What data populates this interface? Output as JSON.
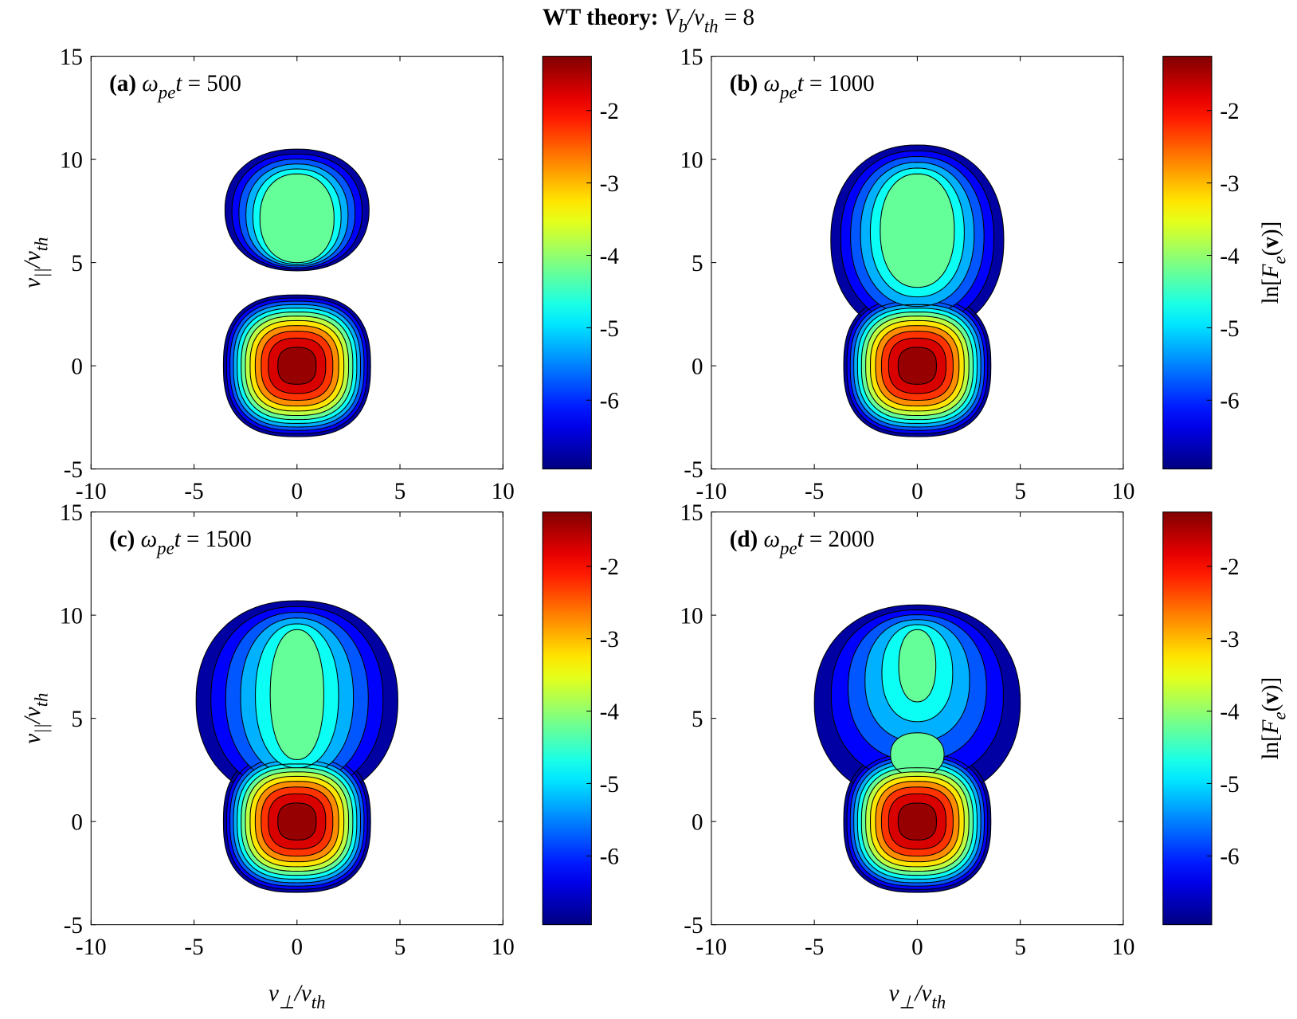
{
  "title": [
    {
      "text": "WT theory:",
      "style": "bold"
    },
    {
      "text": " V",
      "style": "italic"
    },
    {
      "text": "b",
      "style": "sub"
    },
    {
      "text": "/v",
      "style": "italic"
    },
    {
      "text": "th",
      "style": "sub"
    },
    {
      "text": " = 8",
      "style": "normal"
    }
  ],
  "chart_data": [
    {
      "type": "contour",
      "label": [
        {
          "text": "(a)",
          "style": "bold"
        },
        {
          "text": " ω",
          "style": "italic"
        },
        {
          "text": "pe",
          "style": "sub"
        },
        {
          "text": "t",
          "style": "italic"
        },
        {
          "text": " = 500",
          "style": "normal"
        }
      ],
      "y_label": [
        {
          "text": "v",
          "style": "italic"
        },
        {
          "text": "||",
          "style": "sub"
        },
        {
          "text": "/v",
          "style": "italic"
        },
        {
          "text": "th",
          "style": "sub"
        }
      ],
      "xlim": [
        -10,
        10
      ],
      "xticks": [
        -10,
        -5,
        0,
        5,
        10
      ],
      "ylim": [
        -5,
        15
      ],
      "yticks": [
        -5,
        0,
        5,
        10,
        15
      ],
      "clim": [
        -6.95,
        -1.25
      ],
      "cticks": [
        -6,
        -5,
        -4,
        -3,
        -2
      ],
      "levels": [
        -7,
        -6.5,
        -6,
        -5.5,
        -5,
        -4.5,
        -4,
        -3.5,
        -3,
        -2.5,
        -2,
        -1.5
      ],
      "colormap": "jet"
    },
    {
      "type": "contour",
      "label": [
        {
          "text": "(b)",
          "style": "bold"
        },
        {
          "text": " ω",
          "style": "italic"
        },
        {
          "text": "pe",
          "style": "sub"
        },
        {
          "text": "t",
          "style": "italic"
        },
        {
          "text": " = 1000",
          "style": "normal"
        }
      ],
      "colorbar_label": [
        {
          "text": "ln[",
          "style": "normal"
        },
        {
          "text": "F",
          "style": "italic"
        },
        {
          "text": "e",
          "style": "sub"
        },
        {
          "text": "(",
          "style": "normal"
        },
        {
          "text": "v",
          "style": "bold"
        },
        {
          "text": ")]",
          "style": "normal"
        }
      ],
      "xlim": [
        -10,
        10
      ],
      "xticks": [
        -10,
        -5,
        0,
        5,
        10
      ],
      "ylim": [
        -5,
        15
      ],
      "yticks": [
        -5,
        0,
        5,
        10,
        15
      ],
      "clim": [
        -6.95,
        -1.25
      ],
      "cticks": [
        -6,
        -5,
        -4,
        -3,
        -2
      ],
      "levels": [
        -7,
        -6.5,
        -6,
        -5.5,
        -5,
        -4.5,
        -4,
        -3.5,
        -3,
        -2.5,
        -2,
        -1.5
      ],
      "colormap": "jet"
    },
    {
      "type": "contour",
      "label": [
        {
          "text": "(c)",
          "style": "bold"
        },
        {
          "text": " ω",
          "style": "italic"
        },
        {
          "text": "pe",
          "style": "sub"
        },
        {
          "text": "t",
          "style": "italic"
        },
        {
          "text": " = 1500",
          "style": "normal"
        }
      ],
      "y_label": [
        {
          "text": "v",
          "style": "italic"
        },
        {
          "text": "||",
          "style": "sub"
        },
        {
          "text": "/v",
          "style": "italic"
        },
        {
          "text": "th",
          "style": "sub"
        }
      ],
      "x_label": [
        {
          "text": "v",
          "style": "italic"
        },
        {
          "text": "⊥",
          "style": "sub"
        },
        {
          "text": "/v",
          "style": "italic"
        },
        {
          "text": "th",
          "style": "sub"
        }
      ],
      "xlim": [
        -10,
        10
      ],
      "xticks": [
        -10,
        -5,
        0,
        5,
        10
      ],
      "ylim": [
        -5,
        15
      ],
      "yticks": [
        -5,
        0,
        5,
        10,
        15
      ],
      "clim": [
        -6.95,
        -1.25
      ],
      "cticks": [
        -6,
        -5,
        -4,
        -3,
        -2
      ],
      "levels": [
        -7,
        -6.5,
        -6,
        -5.5,
        -5,
        -4.5,
        -4,
        -3.5,
        -3,
        -2.5,
        -2,
        -1.5
      ],
      "colormap": "jet"
    },
    {
      "type": "contour",
      "label": [
        {
          "text": "(d)",
          "style": "bold"
        },
        {
          "text": " ω",
          "style": "italic"
        },
        {
          "text": "pe",
          "style": "sub"
        },
        {
          "text": "t",
          "style": "italic"
        },
        {
          "text": " = 2000",
          "style": "normal"
        }
      ],
      "x_label": [
        {
          "text": "v",
          "style": "italic"
        },
        {
          "text": "⊥",
          "style": "sub"
        },
        {
          "text": "/v",
          "style": "italic"
        },
        {
          "text": "th",
          "style": "sub"
        }
      ],
      "colorbar_label": [
        {
          "text": "ln[",
          "style": "normal"
        },
        {
          "text": "F",
          "style": "italic"
        },
        {
          "text": "e",
          "style": "sub"
        },
        {
          "text": "(",
          "style": "normal"
        },
        {
          "text": "v",
          "style": "bold"
        },
        {
          "text": ")]",
          "style": "normal"
        }
      ],
      "xlim": [
        -10,
        10
      ],
      "xticks": [
        -10,
        -5,
        0,
        5,
        10
      ],
      "ylim": [
        -5,
        15
      ],
      "yticks": [
        -5,
        0,
        5,
        10,
        15
      ],
      "clim": [
        -6.95,
        -1.25
      ],
      "cticks": [
        -6,
        -5,
        -4,
        -3,
        -2
      ],
      "levels": [
        -7,
        -6.5,
        -6,
        -5.5,
        -5,
        -4.5,
        -4,
        -3.5,
        -3,
        -2.5,
        -2,
        -1.5
      ],
      "colormap": "jet"
    }
  ]
}
